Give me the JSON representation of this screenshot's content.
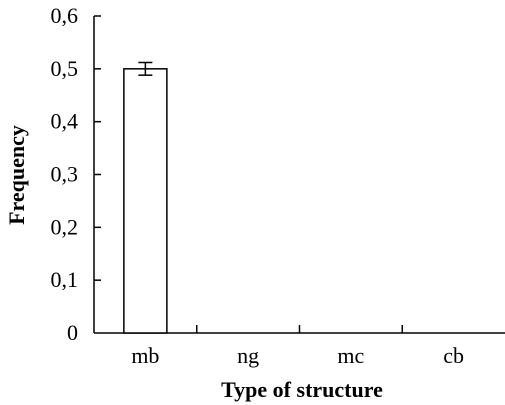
{
  "chart_data": {
    "type": "bar",
    "title": "",
    "xlabel": "Type of structure",
    "ylabel": "Frequency",
    "categories": [
      "mb",
      "ng",
      "mc",
      "cb"
    ],
    "values": [
      0.5,
      0,
      0,
      0
    ],
    "error": [
      0.012,
      0,
      0,
      0
    ],
    "ylim": [
      0,
      0.6
    ],
    "yticks": [
      0,
      0.1,
      0.2,
      0.3,
      0.4,
      0.5,
      0.6
    ],
    "ytick_labels": [
      "0",
      "0,1",
      "0,2",
      "0,3",
      "0,4",
      "0,5",
      "0,6"
    ],
    "grid": false,
    "legend": "none",
    "colors": {
      "bar_fill": "#ffffff",
      "bar_stroke": "#000000",
      "axis": "#000000"
    }
  }
}
